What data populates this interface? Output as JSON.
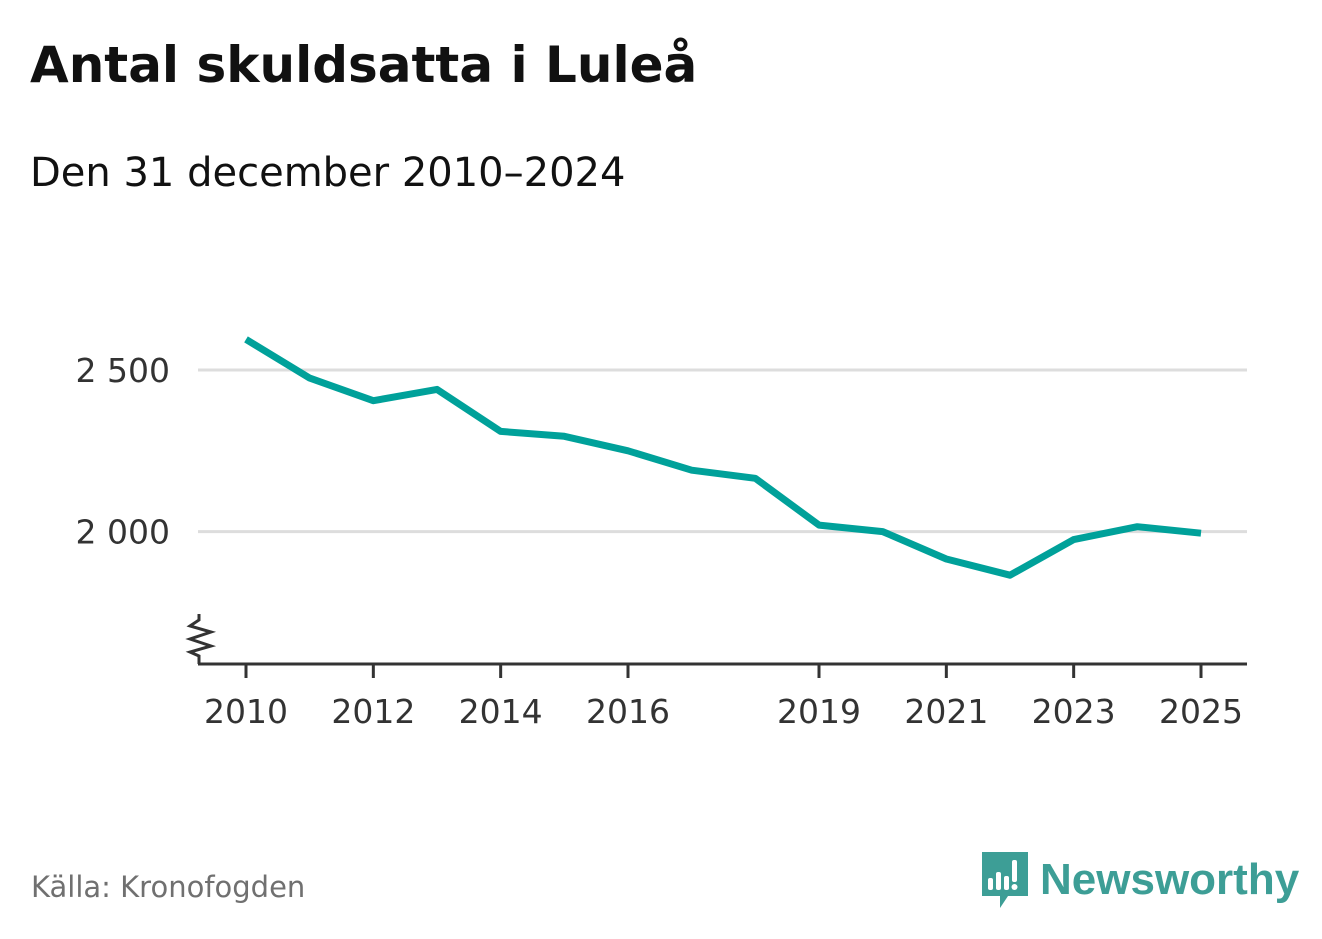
{
  "header": {
    "title": "Antal skuldsatta i Luleå",
    "subtitle": "Den 31 december 2010–2024"
  },
  "footer": {
    "source": "Källa: Kronofogden",
    "brand": "Newsworthy",
    "brand_icon": "newsworthy-logo-icon"
  },
  "colors": {
    "line": "#00a19a",
    "grid": "#dddddd",
    "axis": "#333333",
    "brand": "#3d9e96"
  },
  "chart_data": {
    "type": "line",
    "title": "Antal skuldsatta i Luleå",
    "subtitle": "Den 31 december 2010–2024",
    "xlabel": "",
    "ylabel": "",
    "x": [
      2010,
      2011,
      2012,
      2013,
      2014,
      2015,
      2016,
      2017,
      2018,
      2019,
      2020,
      2021,
      2022,
      2023,
      2024,
      2025
    ],
    "series": [
      {
        "name": "Antal skuldsatta",
        "values": [
          2595,
          2475,
          2405,
          2440,
          2310,
          2295,
          2250,
          2190,
          2165,
          2020,
          2000,
          1915,
          1865,
          1975,
          2015,
          1995
        ]
      }
    ],
    "xlim": [
      2010,
      2025
    ],
    "ylim": [
      1590,
      2720
    ],
    "x_ticks": [
      {
        "value": 2010,
        "label": "2010"
      },
      {
        "value": 2012,
        "label": "2012"
      },
      {
        "value": 2014,
        "label": "2014"
      },
      {
        "value": 2016,
        "label": "2016"
      },
      {
        "value": 2019,
        "label": "2019"
      },
      {
        "value": 2021,
        "label": "2021"
      },
      {
        "value": 2023,
        "label": "2023"
      },
      {
        "value": 2025,
        "label": "2025"
      }
    ],
    "y_ticks": [
      {
        "value": 2000,
        "label": "2 000"
      },
      {
        "value": 2500,
        "label": "2 500"
      }
    ],
    "grid": true,
    "axis_break": true
  }
}
